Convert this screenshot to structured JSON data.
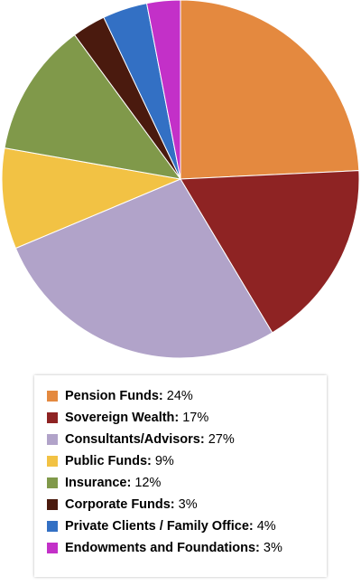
{
  "chart_data": {
    "type": "pie",
    "slices": [
      {
        "label": "Pension Funds",
        "value": 24,
        "display": "24%",
        "color": "#E4893F"
      },
      {
        "label": "Sovereign Wealth",
        "value": 17,
        "display": "17%",
        "color": "#8E2323"
      },
      {
        "label": "Consultants/Advisors",
        "value": 27,
        "display": "27%",
        "color": "#B1A3C9"
      },
      {
        "label": "Public Funds",
        "value": 9,
        "display": "9%",
        "color": "#F2C244"
      },
      {
        "label": "Insurance",
        "value": 12,
        "display": "12%",
        "color": "#80994A"
      },
      {
        "label": "Corporate Funds",
        "value": 3,
        "display": "3%",
        "color": "#4A1A0E"
      },
      {
        "label": "Private Clients / Family Office",
        "value": 4,
        "display": "4%",
        "color": "#3370C4"
      },
      {
        "label": "Endowments and Foundations",
        "value": 3,
        "display": "3%",
        "color": "#C330C8"
      }
    ],
    "start_angle": "top",
    "direction": "clockwise",
    "legend_position": "bottom"
  }
}
